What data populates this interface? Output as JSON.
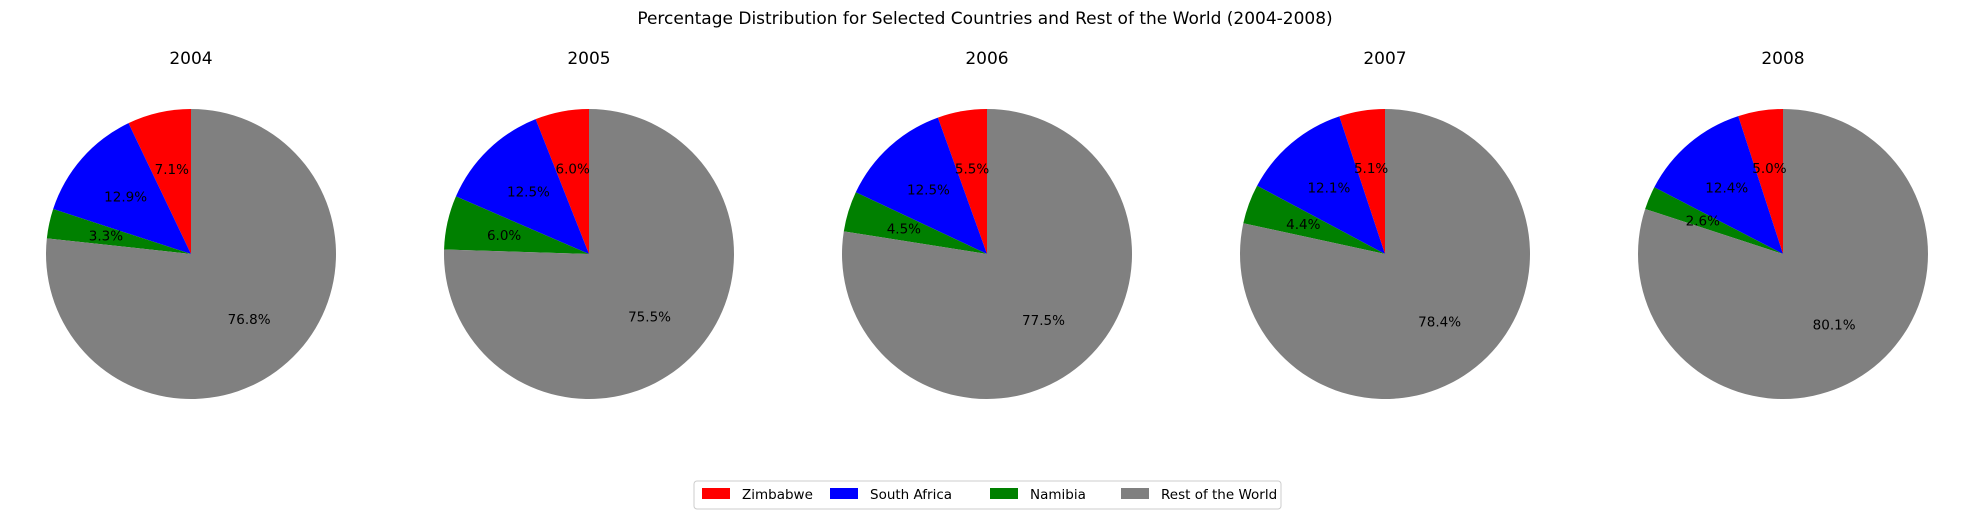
{
  "chart_data": {
    "type": "pie",
    "title": "Percentage Distribution for Selected Countries and Rest of the World (2004-2008)",
    "series_names": [
      "Zimbabwe",
      "South Africa",
      "Namibia",
      "Rest of the World"
    ],
    "colors": {
      "Zimbabwe": "#ff0000",
      "South Africa": "#0000ff",
      "Namibia": "#008000",
      "Rest of the World": "#808080"
    },
    "legend_placement": "bottom-center",
    "start_angle": "top (12 o'clock), counter-clockwise",
    "pies": [
      {
        "title": "2004",
        "values": [
          7.1,
          12.9,
          3.3,
          76.8
        ],
        "labels": [
          "7.1%",
          "12.9%",
          "3.3%",
          "76.8%"
        ]
      },
      {
        "title": "2005",
        "values": [
          6.0,
          12.5,
          6.0,
          75.5
        ],
        "labels": [
          "6.0%",
          "12.5%",
          "6.0%",
          "75.5%"
        ]
      },
      {
        "title": "2006",
        "values": [
          5.5,
          12.5,
          4.5,
          77.5
        ],
        "labels": [
          "5.5%",
          "12.5%",
          "4.5%",
          "77.5%"
        ]
      },
      {
        "title": "2007",
        "values": [
          5.1,
          12.1,
          4.4,
          78.4
        ],
        "labels": [
          "5.1%",
          "12.1%",
          "4.4%",
          "78.4%"
        ]
      },
      {
        "title": "2008",
        "values": [
          5.0,
          12.4,
          2.6,
          80.1
        ],
        "labels": [
          "5.0%",
          "12.4%",
          "2.6%",
          "80.1%"
        ]
      }
    ]
  }
}
